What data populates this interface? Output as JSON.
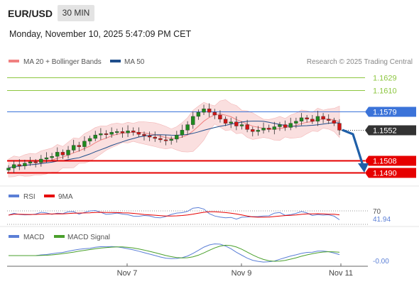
{
  "header": {
    "symbol": "EUR/USD",
    "timeframe": "30 MIN",
    "datetime": "Monday, November 10, 2025 5:47:09 PM CET"
  },
  "legend": {
    "ma20": "MA 20 + Bollinger Bands",
    "ma50": "MA 50",
    "copyright": "Research © 2025 Trading Central"
  },
  "colors": {
    "ma20": "#f08080",
    "ma50": "#1f4e8c",
    "resistance": "#8cc63f",
    "pivot": "#3b73d9",
    "support": "#e60000",
    "current": "#333333",
    "arrow": "#1f5fa8",
    "candle_up": "#1e8a1e",
    "candle_down": "#d21414",
    "rsi": "#5b7fd6",
    "rsi_ma": "#e60000",
    "macd": "#5b7fd6",
    "macd_signal": "#4aa02c"
  },
  "chart_data": {
    "type": "candlestick",
    "title": "EUR/USD",
    "price_levels": [
      {
        "value": 1.1629,
        "label": "1.1629",
        "kind": "resistance"
      },
      {
        "value": 1.161,
        "label": "1.1610",
        "kind": "resistance"
      },
      {
        "value": 1.1579,
        "label": "1.1579",
        "kind": "pivot"
      },
      {
        "value": 1.1552,
        "label": "1.1552",
        "kind": "current"
      },
      {
        "value": 1.1508,
        "label": "1.1508",
        "kind": "support"
      },
      {
        "value": 1.149,
        "label": "1.1490",
        "kind": "support"
      }
    ],
    "x_ticks": [
      "Nov 7",
      "Nov 9",
      "Nov 11"
    ],
    "price_ylim": [
      1.1475,
      1.164
    ],
    "close_path": [
      1.1497,
      1.1502,
      1.15,
      1.1504,
      1.1506,
      1.1505,
      1.151,
      1.1512,
      1.1514,
      1.152,
      1.1516,
      1.1523,
      1.153,
      1.1528,
      1.1536,
      1.154,
      1.1545,
      1.1547,
      1.1546,
      1.1549,
      1.155,
      1.1548,
      1.1551,
      1.1549,
      1.1546,
      1.1544,
      1.1542,
      1.154,
      1.1538,
      1.1537,
      1.1539,
      1.1545,
      1.1552,
      1.156,
      1.1572,
      1.1578,
      1.1583,
      1.1578,
      1.1574,
      1.1568,
      1.1562,
      1.1564,
      1.1558,
      1.156,
      1.1553,
      1.155,
      1.1552,
      1.1555,
      1.1553,
      1.1557,
      1.156,
      1.1556,
      1.1562,
      1.1565,
      1.157,
      1.1568,
      1.1565,
      1.1572,
      1.1568,
      1.1566,
      1.1562,
      1.1552
    ],
    "rsi": {
      "label": "RSI",
      "ma_label": "9MA",
      "levels": [
        70,
        30
      ],
      "value_label": "41.94",
      "ylim": [
        20,
        80
      ]
    },
    "macd": {
      "label": "MACD",
      "signal_label": "MACD Signal",
      "value_label": "-0.00"
    }
  }
}
